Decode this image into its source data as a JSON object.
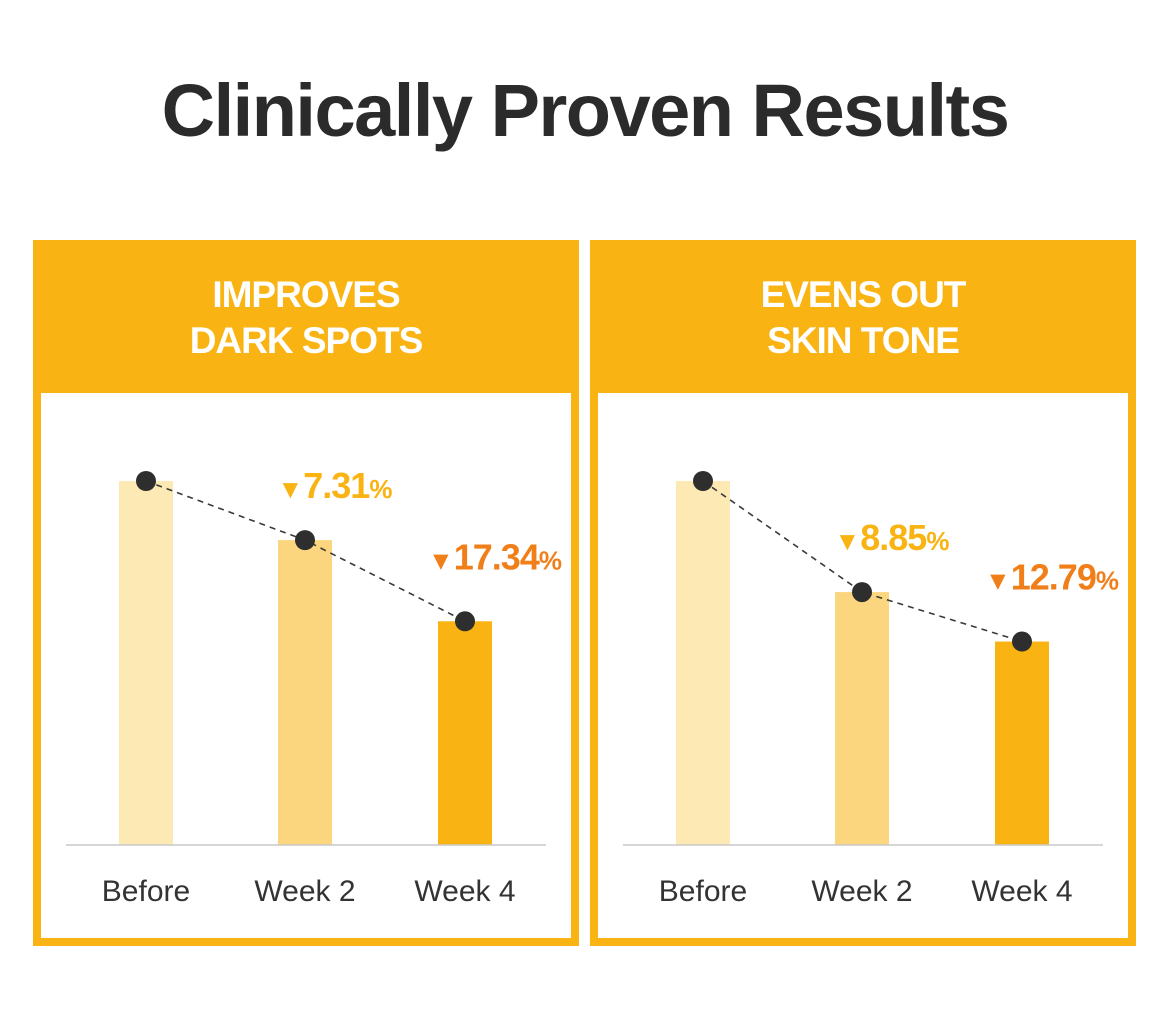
{
  "page": {
    "title": "Clinically Proven Results"
  },
  "chart_data": [
    {
      "type": "bar",
      "title_lines": [
        "IMPROVES",
        "DARK SPOTS"
      ],
      "categories": [
        "Before",
        "Week 2",
        "Week 4"
      ],
      "values": [
        100,
        92.69,
        82.66
      ],
      "reductions": [
        {
          "arrow": "▼",
          "value": "7.31",
          "unit": "%"
        },
        {
          "arrow": "▼",
          "value": "17.34",
          "unit": "%"
        }
      ],
      "bar_colors": [
        "#fde9b4",
        "#fcd67e",
        "#f9b414"
      ],
      "label_colors": [
        "#f9b414",
        "#f07f1a"
      ],
      "ylim": [
        55,
        100
      ],
      "grid": false,
      "trend_line": "dashed"
    },
    {
      "type": "bar",
      "title_lines": [
        "EVENS OUT",
        "SKIN TONE"
      ],
      "categories": [
        "Before",
        "Week 2",
        "Week 4"
      ],
      "values": [
        100,
        91.15,
        87.21
      ],
      "reductions": [
        {
          "arrow": "▼",
          "value": "8.85",
          "unit": "%"
        },
        {
          "arrow": "▼",
          "value": "12.79",
          "unit": "%"
        }
      ],
      "bar_colors": [
        "#fde9b4",
        "#fcd67e",
        "#f9b414"
      ],
      "label_colors": [
        "#f9b414",
        "#f07f1a"
      ],
      "ylim": [
        71,
        100
      ],
      "grid": false,
      "trend_line": "dashed"
    }
  ]
}
